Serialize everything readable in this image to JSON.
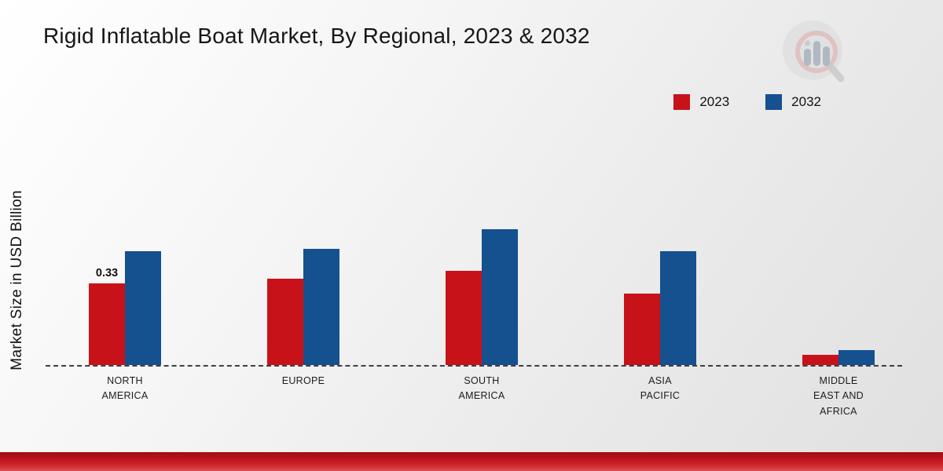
{
  "title": "Rigid Inflatable Boat Market, By Regional, 2023 & 2032",
  "ylabel": "Market Size in USD Billion",
  "legend": [
    {
      "label": "2023",
      "color": "#c8121a"
    },
    {
      "label": "2032",
      "color": "#15508f"
    }
  ],
  "colors": {
    "series_2023": "#c8121a",
    "series_2032": "#15508f",
    "baseline": "#3f3f3f",
    "footer_band": "#b8121a"
  },
  "chart_data": {
    "type": "bar",
    "title": "Rigid Inflatable Boat Market, By Regional, 2023 & 2032",
    "xlabel": "",
    "ylabel": "Market Size in USD Billion",
    "categories": [
      "North America",
      "Europe",
      "South America",
      "Asia Pacific",
      "Middle East and Africa"
    ],
    "series": [
      {
        "name": "2023",
        "color": "#c8121a",
        "values": [
          0.33,
          0.35,
          0.38,
          0.29,
          0.04
        ]
      },
      {
        "name": "2032",
        "color": "#15508f",
        "values": [
          0.46,
          0.47,
          0.55,
          0.46,
          0.06
        ]
      }
    ],
    "annotations": [
      {
        "series": "2023",
        "category": "North America",
        "text": "0.33"
      }
    ],
    "ylim": [
      0,
      0.66
    ],
    "grid": false,
    "legend_position": "top-right",
    "baseline_style": "dashed"
  }
}
